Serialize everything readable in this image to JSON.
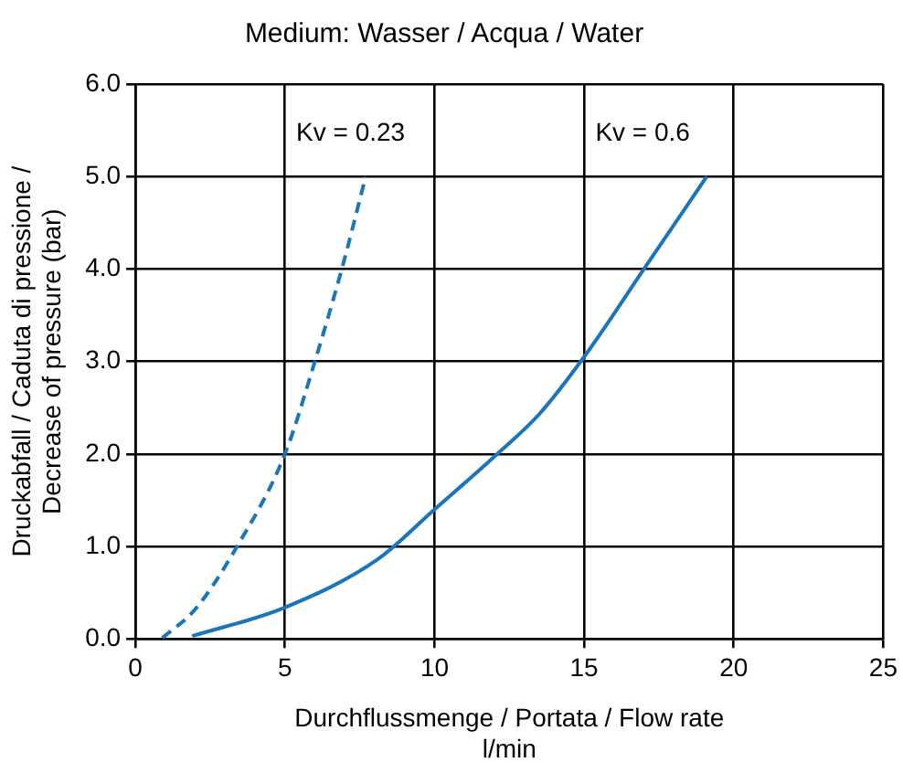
{
  "chart_data": {
    "type": "line",
    "title": "Medium: Wasser / Acqua / Water",
    "xlabel": "Durchflussmenge / Portata / Flow rate\nl/min",
    "ylabel": "Druckabfall / Caduta di pressione /\nDecrease of pressure (bar)",
    "xlim": [
      0,
      25
    ],
    "xticks": [
      0,
      5,
      10,
      15,
      20,
      25
    ],
    "ylim": [
      0,
      6
    ],
    "yticks": [
      {
        "value": 0,
        "label": "0.0"
      },
      {
        "value": 1,
        "label": "1.0"
      },
      {
        "value": 2,
        "label": "2.0"
      },
      {
        "value": 3,
        "label": "3.0"
      },
      {
        "value": 4,
        "label": "4.0"
      },
      {
        "value": 5,
        "label": "5.0"
      },
      {
        "value": 6,
        "label": "6.0"
      }
    ],
    "grid": true,
    "legend": false,
    "marker": "none",
    "series": [
      {
        "color": "#1a75bc",
        "line_style": "dashed",
        "x": [
          0.9,
          2,
          3.4,
          5,
          6,
          6.9,
          7.7
        ],
        "values": [
          0.01,
          0.32,
          1,
          2,
          3,
          4,
          5
        ]
      },
      {
        "color": "#1a75bc",
        "line_style": "solid",
        "x": [
          1.9,
          5,
          8.1,
          10,
          12.1,
          13.5,
          15,
          17,
          19.1
        ],
        "values": [
          0.03,
          0.34,
          0.86,
          1.4,
          2,
          2.43,
          3.05,
          4,
          5
        ]
      }
    ],
    "annotations": [
      "Kv = 0.23",
      "Kv = 0.6"
    ]
  }
}
